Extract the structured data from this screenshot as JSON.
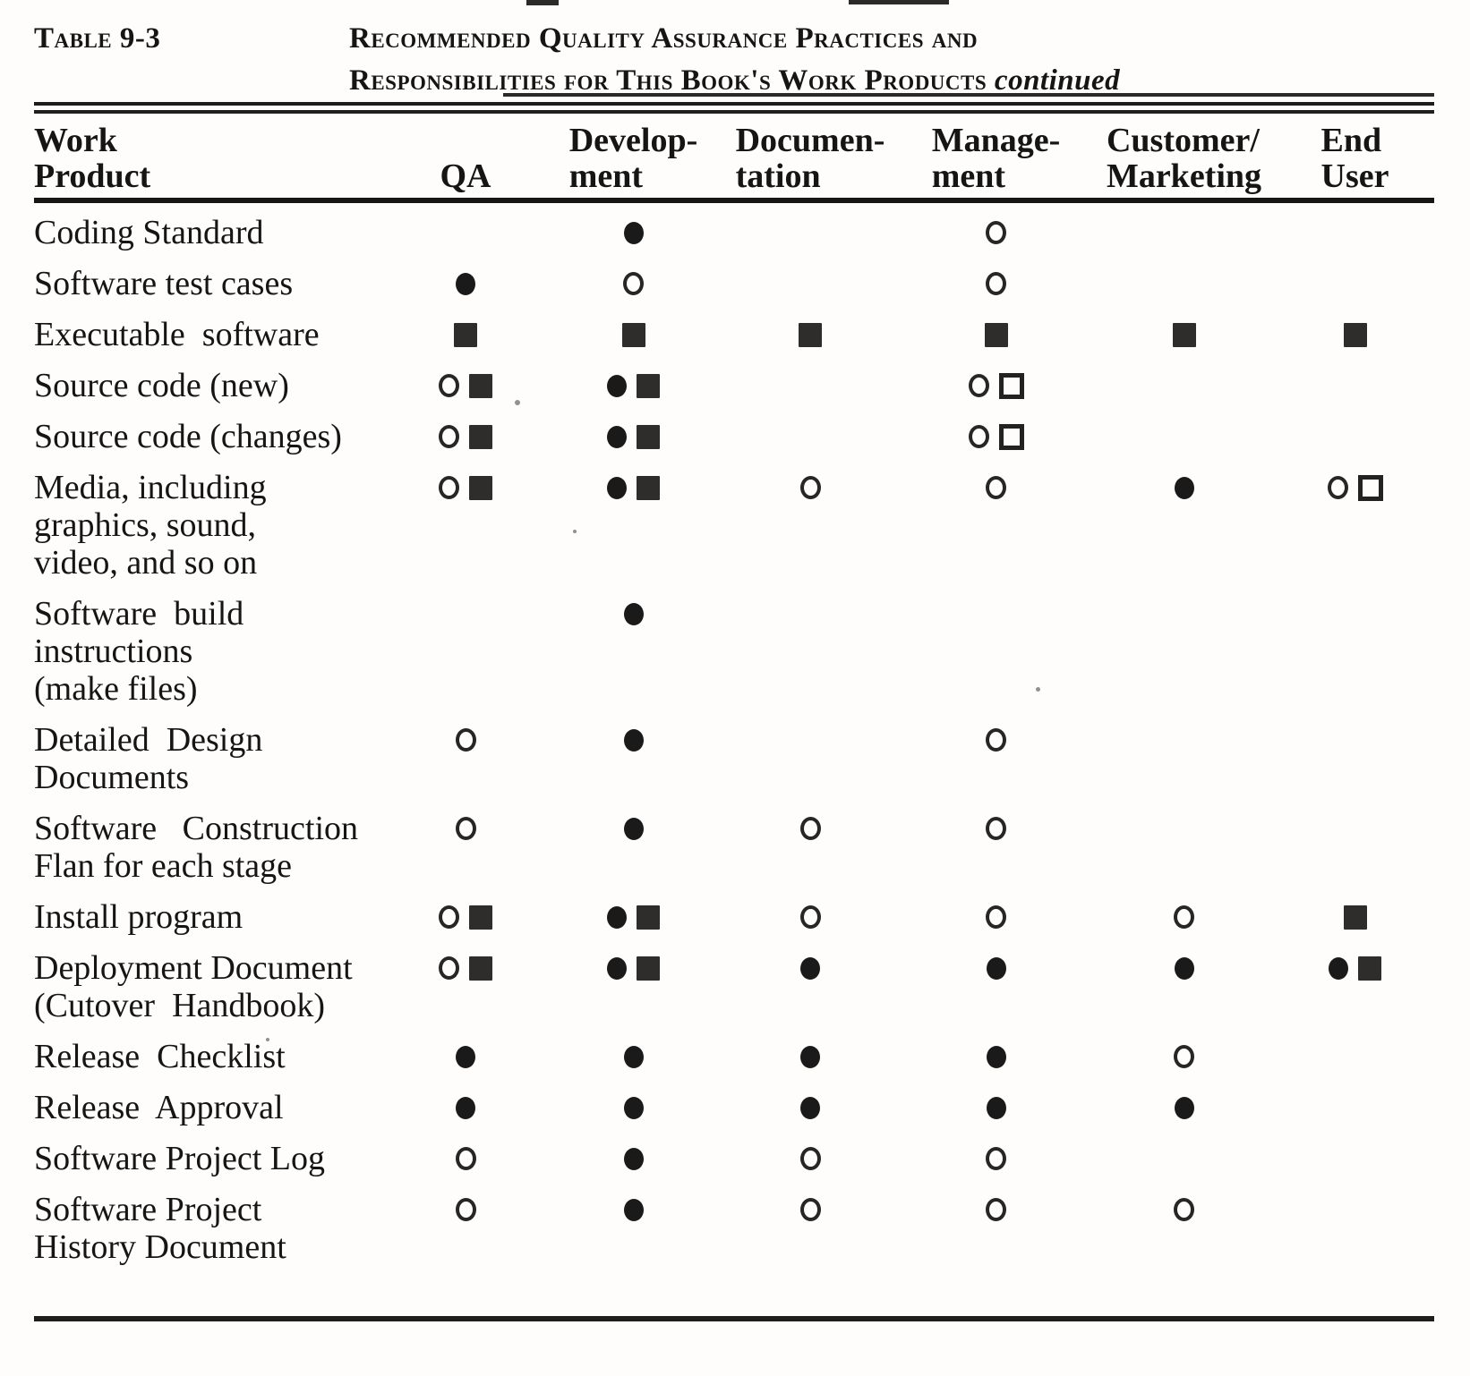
{
  "title": {
    "label": "Table 9-3",
    "line1": "Recommended Quality Assurance Practices and",
    "line2": "Responsibilities for This Book's Work Products",
    "continued": "continued"
  },
  "symbol_glyphs": {
    "filled-circle": "●",
    "open-circle": "○",
    "filled-square": "■",
    "open-square": "□"
  },
  "table": {
    "headers": [
      {
        "id": "work-product",
        "line1": "Work",
        "line2": "Product"
      },
      {
        "id": "qa",
        "line1": "",
        "line2": "QA"
      },
      {
        "id": "development",
        "line1": "Develop-",
        "line2": "ment"
      },
      {
        "id": "documentation",
        "line1": "Documen-",
        "line2": "tation"
      },
      {
        "id": "management",
        "line1": "Manage-",
        "line2": "ment"
      },
      {
        "id": "customer-marketing",
        "line1": "Customer/",
        "line2": "Marketing"
      },
      {
        "id": "end-user",
        "line1": "End",
        "line2": "User"
      }
    ],
    "rows": [
      {
        "product_lines": [
          "Coding Standard"
        ],
        "cells": [
          [],
          [
            "filled-circle"
          ],
          [],
          [
            "open-circle"
          ],
          [],
          []
        ]
      },
      {
        "product_lines": [
          "Software test cases"
        ],
        "cells": [
          [
            "filled-circle"
          ],
          [
            "open-circle"
          ],
          [],
          [
            "open-circle"
          ],
          [],
          []
        ]
      },
      {
        "product_lines": [
          "Executable  software"
        ],
        "cells": [
          [
            "filled-square"
          ],
          [
            "filled-square"
          ],
          [
            "filled-square"
          ],
          [
            "filled-square"
          ],
          [
            "filled-square"
          ],
          [
            "filled-square"
          ]
        ]
      },
      {
        "product_lines": [
          "Source code (new)"
        ],
        "cells": [
          [
            "open-circle",
            "filled-square"
          ],
          [
            "filled-circle",
            "filled-square"
          ],
          [],
          [
            "open-circle",
            "open-square"
          ],
          [],
          []
        ]
      },
      {
        "product_lines": [
          "Source code (changes)"
        ],
        "cells": [
          [
            "open-circle",
            "filled-square"
          ],
          [
            "filled-circle",
            "filled-square"
          ],
          [],
          [
            "open-circle",
            "open-square"
          ],
          [],
          []
        ]
      },
      {
        "product_lines": [
          "Media, including",
          "graphics, sound,",
          "video, and so on"
        ],
        "cells": [
          [
            "open-circle",
            "filled-square"
          ],
          [
            "filled-circle",
            "filled-square"
          ],
          [
            "open-circle"
          ],
          [
            "open-circle"
          ],
          [
            "filled-circle"
          ],
          [
            "open-circle",
            "open-square"
          ]
        ]
      },
      {
        "product_lines": [
          "Software  build",
          "instructions",
          "(make files)"
        ],
        "cells": [
          [],
          [
            "filled-circle"
          ],
          [],
          [],
          [],
          []
        ]
      },
      {
        "product_lines": [
          "Detailed  Design",
          "Documents"
        ],
        "cells": [
          [
            "open-circle"
          ],
          [
            "filled-circle"
          ],
          [],
          [
            "open-circle"
          ],
          [],
          []
        ]
      },
      {
        "product_lines": [
          "Software   Construction",
          "Flan for each stage"
        ],
        "cells": [
          [
            "open-circle"
          ],
          [
            "filled-circle"
          ],
          [
            "open-circle"
          ],
          [
            "open-circle"
          ],
          [],
          []
        ]
      },
      {
        "product_lines": [
          "Install program"
        ],
        "cells": [
          [
            "open-circle",
            "filled-square"
          ],
          [
            "filled-circle",
            "filled-square"
          ],
          [
            "open-circle"
          ],
          [
            "open-circle"
          ],
          [
            "open-circle"
          ],
          [
            "filled-square"
          ]
        ]
      },
      {
        "product_lines": [
          "Deployment Document",
          "(Cutover  Handbook)"
        ],
        "cells": [
          [
            "open-circle",
            "filled-square"
          ],
          [
            "filled-circle",
            "filled-square"
          ],
          [
            "filled-circle"
          ],
          [
            "filled-circle"
          ],
          [
            "filled-circle"
          ],
          [
            "filled-circle",
            "filled-square"
          ]
        ]
      },
      {
        "product_lines": [
          "Release  Checklist"
        ],
        "cells": [
          [
            "filled-circle"
          ],
          [
            "filled-circle"
          ],
          [
            "filled-circle"
          ],
          [
            "filled-circle"
          ],
          [
            "open-circle"
          ],
          []
        ]
      },
      {
        "product_lines": [
          "Release  Approval"
        ],
        "cells": [
          [
            "filled-circle"
          ],
          [
            "filled-circle"
          ],
          [
            "filled-circle"
          ],
          [
            "filled-circle"
          ],
          [
            "filled-circle"
          ],
          []
        ]
      },
      {
        "product_lines": [
          "Software Project Log"
        ],
        "cells": [
          [
            "open-circle"
          ],
          [
            "filled-circle"
          ],
          [
            "open-circle"
          ],
          [
            "open-circle"
          ],
          [],
          []
        ]
      },
      {
        "product_lines": [
          "Software Project",
          "History Document"
        ],
        "cells": [
          [
            "open-circle"
          ],
          [
            "filled-circle"
          ],
          [
            "open-circle"
          ],
          [
            "open-circle"
          ],
          [
            "open-circle"
          ],
          []
        ]
      }
    ]
  }
}
